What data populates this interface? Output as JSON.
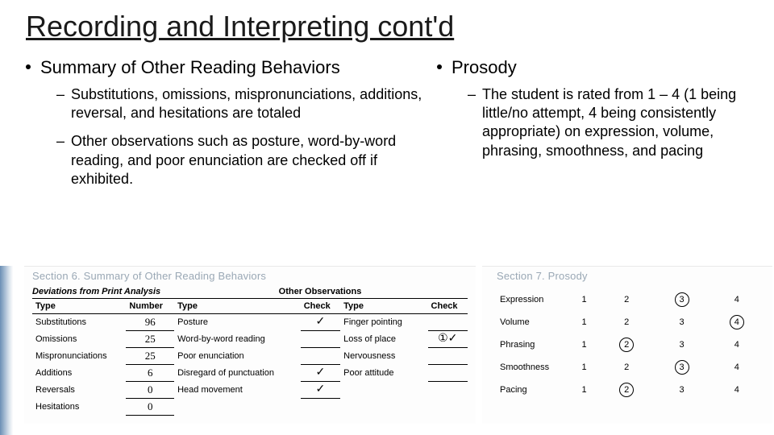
{
  "title": "Recording and Interpreting cont'd",
  "left": {
    "heading": "Summary of Other Reading Behaviors",
    "subs": [
      "Substitutions, omissions, mispronunciations, additions, reversal, and hesitations are totaled",
      "Other observations such as posture, word-by-word reading, and poor enunciation are checked off if exhibited."
    ]
  },
  "right": {
    "heading": "Prosody",
    "subs": [
      "The student is rated from 1 – 4 (1 being little/no attempt, 4 being consistently appropriate) on expression, volume, phrasing, smoothness, and pacing"
    ]
  },
  "section6": {
    "title": "Section 6.  Summary of Other Reading Behaviors",
    "subtitle": "Deviations from Print Analysis",
    "otherObsHeader": "Other Observations",
    "headers": {
      "type": "Type",
      "number": "Number",
      "check": "Check"
    },
    "deviations": [
      {
        "type": "Substitutions",
        "number": "96"
      },
      {
        "type": "Omissions",
        "number": "25"
      },
      {
        "type": "Mispronunciations",
        "number": "25"
      },
      {
        "type": "Additions",
        "number": "6"
      },
      {
        "type": "Reversals",
        "number": "0"
      },
      {
        "type": "Hesitations",
        "number": "0"
      }
    ],
    "obs1": [
      {
        "type": "Posture",
        "check": "✓"
      },
      {
        "type": "Word-by-word reading",
        "check": ""
      },
      {
        "type": "Poor enunciation",
        "check": ""
      },
      {
        "type": "Disregard of punctuation",
        "check": "✓"
      },
      {
        "type": "Head movement",
        "check": "✓"
      }
    ],
    "obs2": [
      {
        "type": "Finger pointing",
        "check": ""
      },
      {
        "type": "Loss of place",
        "check": "①✓"
      },
      {
        "type": "Nervousness",
        "check": ""
      },
      {
        "type": "Poor attitude",
        "check": ""
      }
    ]
  },
  "section7": {
    "title": "Section 7.  Prosody",
    "rows": [
      {
        "label": "Expression",
        "vals": [
          "1",
          "2",
          "3",
          "4"
        ],
        "circled": 2
      },
      {
        "label": "Volume",
        "vals": [
          "1",
          "2",
          "3",
          "4"
        ],
        "circled": 3
      },
      {
        "label": "Phrasing",
        "vals": [
          "1",
          "2",
          "3",
          "4"
        ],
        "circled": 1
      },
      {
        "label": "Smoothness",
        "vals": [
          "1",
          "2",
          "3",
          "4"
        ],
        "circled": 2
      },
      {
        "label": "Pacing",
        "vals": [
          "1",
          "2",
          "3",
          "4"
        ],
        "circled": 1
      }
    ]
  }
}
